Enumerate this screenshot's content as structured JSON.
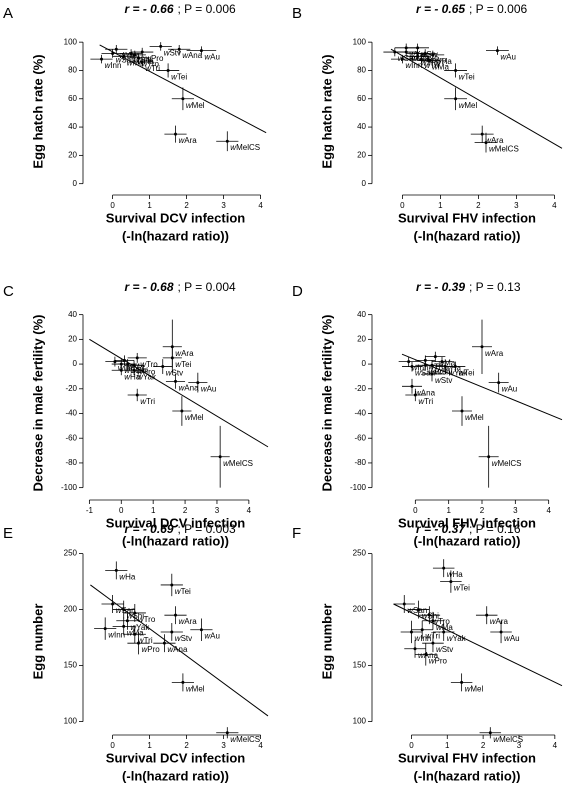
{
  "chart_data": [
    {
      "type": "scatter",
      "panel": "A",
      "title_r": "r = - 0.66",
      "title_p": "; P = 0.006",
      "ylabel": "Egg hatch rate (%)",
      "xlabel": [
        "Survival DCV infection",
        "(-ln(hazard ratio))"
      ],
      "color": "#000000",
      "xlim": [
        -0.8,
        4.2
      ],
      "ylim": [
        -8,
        110
      ],
      "xticks": [
        0,
        1,
        2,
        3,
        4
      ],
      "yticks": [
        0,
        20,
        40,
        60,
        80,
        100
      ],
      "labels": [
        "wYak",
        "wSan",
        "wShi",
        "wPro",
        "wStv",
        "wAna",
        "wAu",
        "wMa",
        "wTro",
        "wTri",
        "wInn",
        "wHa",
        "wTei",
        "wMel",
        "wAra",
        "wMelCS"
      ],
      "x": [
        0.1,
        0.0,
        0.5,
        0.8,
        1.3,
        1.8,
        2.4,
        0.3,
        0.7,
        0.8,
        -0.3,
        0.6,
        1.5,
        1.9,
        1.7,
        3.1
      ],
      "y": [
        95,
        92,
        92,
        93,
        97,
        95,
        94,
        90,
        89,
        86,
        88,
        91,
        80,
        60,
        35,
        30
      ],
      "xerr": [
        0.3,
        0.3,
        0.3,
        0.3,
        0.3,
        0.3,
        0.4,
        0.3,
        0.3,
        0.3,
        0.3,
        0.3,
        0.3,
        0.3,
        0.3,
        0.3
      ],
      "yerr": [
        3,
        3,
        3,
        3,
        3,
        3,
        3,
        3,
        3,
        3,
        3,
        3,
        5,
        8,
        6,
        7
      ],
      "fit_x": [
        -0.35,
        4.15
      ],
      "fit_y": [
        98,
        36
      ]
    },
    {
      "type": "scatter",
      "panel": "B",
      "title_r": "r = - 0.65",
      "title_p": "; P = 0.006",
      "ylabel": "Egg hatch rate (%)",
      "xlabel": [
        "Survival FHV infection",
        "(-ln(hazard ratio))"
      ],
      "color": "#000000",
      "xlim": [
        -0.8,
        4.2
      ],
      "ylim": [
        -8,
        110
      ],
      "xticks": [
        0,
        1,
        2,
        3,
        4
      ],
      "yticks": [
        0,
        20,
        40,
        60,
        80,
        100
      ],
      "labels": [
        "wYak",
        "wStv",
        "wSan",
        "wAna",
        "wShi",
        "wPro",
        "wHa",
        "wInn",
        "wTri",
        "wMa",
        "wTro",
        "wAu",
        "wTei",
        "wMel",
        "wAra",
        "wMelCS"
      ],
      "x": [
        0.1,
        0.4,
        -0.2,
        0.1,
        0.4,
        0.6,
        0.8,
        0.0,
        0.5,
        0.7,
        0.4,
        2.5,
        1.4,
        1.4,
        2.1,
        2.2
      ],
      "y": [
        96,
        96,
        93,
        93,
        92,
        92,
        91,
        88,
        88,
        87,
        90,
        94,
        80,
        60,
        35,
        29
      ],
      "xerr": [
        0.3,
        0.3,
        0.3,
        0.3,
        0.3,
        0.3,
        0.3,
        0.3,
        0.3,
        0.3,
        0.3,
        0.3,
        0.3,
        0.3,
        0.3,
        0.3
      ],
      "yerr": [
        3,
        3,
        3,
        3,
        3,
        3,
        3,
        3,
        3,
        3,
        3,
        3,
        5,
        8,
        6,
        7
      ],
      "fit_x": [
        -0.3,
        4.2
      ],
      "fit_y": [
        95,
        25
      ]
    },
    {
      "type": "scatter",
      "panel": "C",
      "title_r": "r = - 0.68",
      "title_p": "; P = 0.004",
      "ylabel": "Decrease in male fertility (%)",
      "xlabel": [
        "Survival DCV infection",
        "(-ln(hazard ratio))"
      ],
      "color": "#000000",
      "xlim": [
        -1.2,
        4.6
      ],
      "ylim": [
        -110,
        47
      ],
      "xticks": [
        -1,
        0,
        1,
        2,
        3,
        4
      ],
      "yticks": [
        -100,
        -80,
        -60,
        -40,
        -20,
        0,
        20,
        40
      ],
      "labels": [
        "wInn",
        "wMa",
        "wTro",
        "wSan",
        "wShi",
        "wPro",
        "wHa",
        "wYak",
        "wTei",
        "wAra",
        "wStv",
        "wAna",
        "wAu",
        "wTri",
        "wMel",
        "wMelCS"
      ],
      "x": [
        -0.2,
        0.1,
        0.5,
        0.0,
        0.2,
        0.4,
        0.0,
        0.4,
        1.6,
        1.6,
        1.3,
        1.7,
        2.4,
        0.5,
        1.9,
        3.1
      ],
      "y": [
        2,
        3,
        5,
        0,
        0,
        -1,
        -5,
        -5,
        5,
        14,
        -2,
        -14,
        -15,
        -25,
        -38,
        -75
      ],
      "xerr": [
        0.3,
        0.3,
        0.3,
        0.3,
        0.3,
        0.3,
        0.3,
        0.3,
        0.3,
        0.3,
        0.3,
        0.3,
        0.3,
        0.3,
        0.3,
        0.3
      ],
      "yerr": [
        4,
        4,
        4,
        4,
        4,
        4,
        4,
        4,
        8,
        22,
        6,
        6,
        8,
        5,
        12,
        25
      ],
      "fit_x": [
        -1.0,
        4.6
      ],
      "fit_y": [
        20,
        -67
      ]
    },
    {
      "type": "scatter",
      "panel": "D",
      "title_r": "r = - 0.39",
      "title_p": "; P = 0.13",
      "ylabel": "Decrease in male fertility (%)",
      "xlabel": [
        "Survival FHV infection",
        "(-ln(hazard ratio))"
      ],
      "color": "#000000",
      "xlim": [
        -1.3,
        4.4
      ],
      "ylim": [
        -110,
        47
      ],
      "xticks": [
        0,
        1,
        2,
        3,
        4
      ],
      "yticks": [
        -100,
        -80,
        -60,
        -40,
        -20,
        0,
        20,
        40
      ],
      "labels": [
        "wInn",
        "wTro",
        "wMa",
        "wSan",
        "wPro",
        "wShi",
        "wHa",
        "wYak",
        "wTei",
        "wStv",
        "wAna",
        "wTri",
        "wAra",
        "wAu",
        "wMel",
        "wMelCS"
      ],
      "x": [
        -0.2,
        0.3,
        0.6,
        -0.1,
        0.3,
        0.5,
        0.8,
        0.9,
        1.2,
        0.5,
        -0.1,
        0.0,
        2.0,
        2.5,
        1.4,
        2.2
      ],
      "y": [
        2,
        3,
        6,
        -2,
        -1,
        -1,
        2,
        -2,
        -2,
        -8,
        -18,
        -25,
        14,
        -15,
        -38,
        -75
      ],
      "xerr": [
        0.3,
        0.3,
        0.3,
        0.3,
        0.3,
        0.3,
        0.3,
        0.3,
        0.3,
        0.3,
        0.3,
        0.3,
        0.3,
        0.3,
        0.3,
        0.3
      ],
      "yerr": [
        4,
        4,
        4,
        4,
        4,
        4,
        4,
        4,
        4,
        6,
        6,
        5,
        22,
        8,
        12,
        25
      ],
      "fit_x": [
        -0.4,
        4.4
      ],
      "fit_y": [
        8,
        -45
      ]
    },
    {
      "type": "scatter",
      "panel": "E",
      "title_r": "r = - 0.69",
      "title_p": "; P = 0.003",
      "ylabel": "Egg number",
      "xlabel": [
        "Survival DCV infection",
        "(-ln(hazard ratio))"
      ],
      "color": "#000000",
      "xlim": [
        -0.8,
        4.2
      ],
      "ylim": [
        88,
        255
      ],
      "xticks": [
        0,
        1,
        2,
        3,
        4
      ],
      "yticks": [
        100,
        150,
        200,
        250
      ],
      "labels": [
        "wHa",
        "wTei",
        "wSan",
        "wShi",
        "wTro",
        "wYak",
        "wMa",
        "wAra",
        "wAu",
        "wStv",
        "wInn",
        "wTri",
        "wAna",
        "wPro",
        "wMel",
        "wMelCS"
      ],
      "x": [
        0.1,
        1.6,
        0.0,
        0.3,
        0.6,
        0.4,
        0.3,
        1.7,
        2.4,
        1.6,
        -0.2,
        0.6,
        1.4,
        0.7,
        1.9,
        3.1
      ],
      "y": [
        235,
        222,
        205,
        200,
        197,
        190,
        185,
        195,
        182,
        180,
        183,
        178,
        170,
        170,
        135,
        90
      ],
      "xerr": [
        0.3,
        0.3,
        0.3,
        0.3,
        0.3,
        0.3,
        0.3,
        0.3,
        0.3,
        0.3,
        0.3,
        0.3,
        0.3,
        0.3,
        0.3,
        0.3
      ],
      "yerr": [
        8,
        10,
        8,
        8,
        8,
        8,
        8,
        8,
        10,
        8,
        10,
        8,
        8,
        10,
        8,
        5
      ],
      "fit_x": [
        -0.6,
        4.2
      ],
      "fit_y": [
        222,
        105
      ]
    },
    {
      "type": "scatter",
      "panel": "F",
      "title_r": "r = - 0.37",
      "title_p": "; P = 0.16",
      "ylabel": "Egg number",
      "xlabel": [
        "Survival FHV infection",
        "(-ln(hazard ratio))"
      ],
      "color": "#000000",
      "xlim": [
        -1.1,
        4.2
      ],
      "ylim": [
        88,
        255
      ],
      "xticks": [
        0,
        1,
        2,
        3,
        4
      ],
      "yticks": [
        100,
        150,
        200,
        250
      ],
      "labels": [
        "wHa",
        "wTei",
        "wSan",
        "wShi",
        "wTro",
        "wMa",
        "wAra",
        "wAu",
        "wTri",
        "wYak",
        "wInn",
        "wStv",
        "wAna",
        "wPro",
        "wMel",
        "wMelCS"
      ],
      "x": [
        0.9,
        1.1,
        -0.2,
        0.2,
        0.5,
        0.6,
        2.1,
        2.5,
        0.3,
        0.9,
        0.0,
        0.6,
        0.1,
        0.4,
        1.4,
        2.2
      ],
      "y": [
        237,
        225,
        205,
        200,
        195,
        190,
        195,
        180,
        182,
        180,
        180,
        170,
        165,
        160,
        135,
        90
      ],
      "xerr": [
        0.3,
        0.3,
        0.3,
        0.3,
        0.3,
        0.3,
        0.3,
        0.3,
        0.3,
        0.3,
        0.3,
        0.3,
        0.3,
        0.3,
        0.3,
        0.3
      ],
      "yerr": [
        8,
        10,
        8,
        8,
        8,
        8,
        8,
        10,
        8,
        8,
        10,
        8,
        8,
        10,
        8,
        5
      ],
      "fit_x": [
        -0.5,
        4.2
      ],
      "fit_y": [
        205,
        132
      ]
    }
  ]
}
